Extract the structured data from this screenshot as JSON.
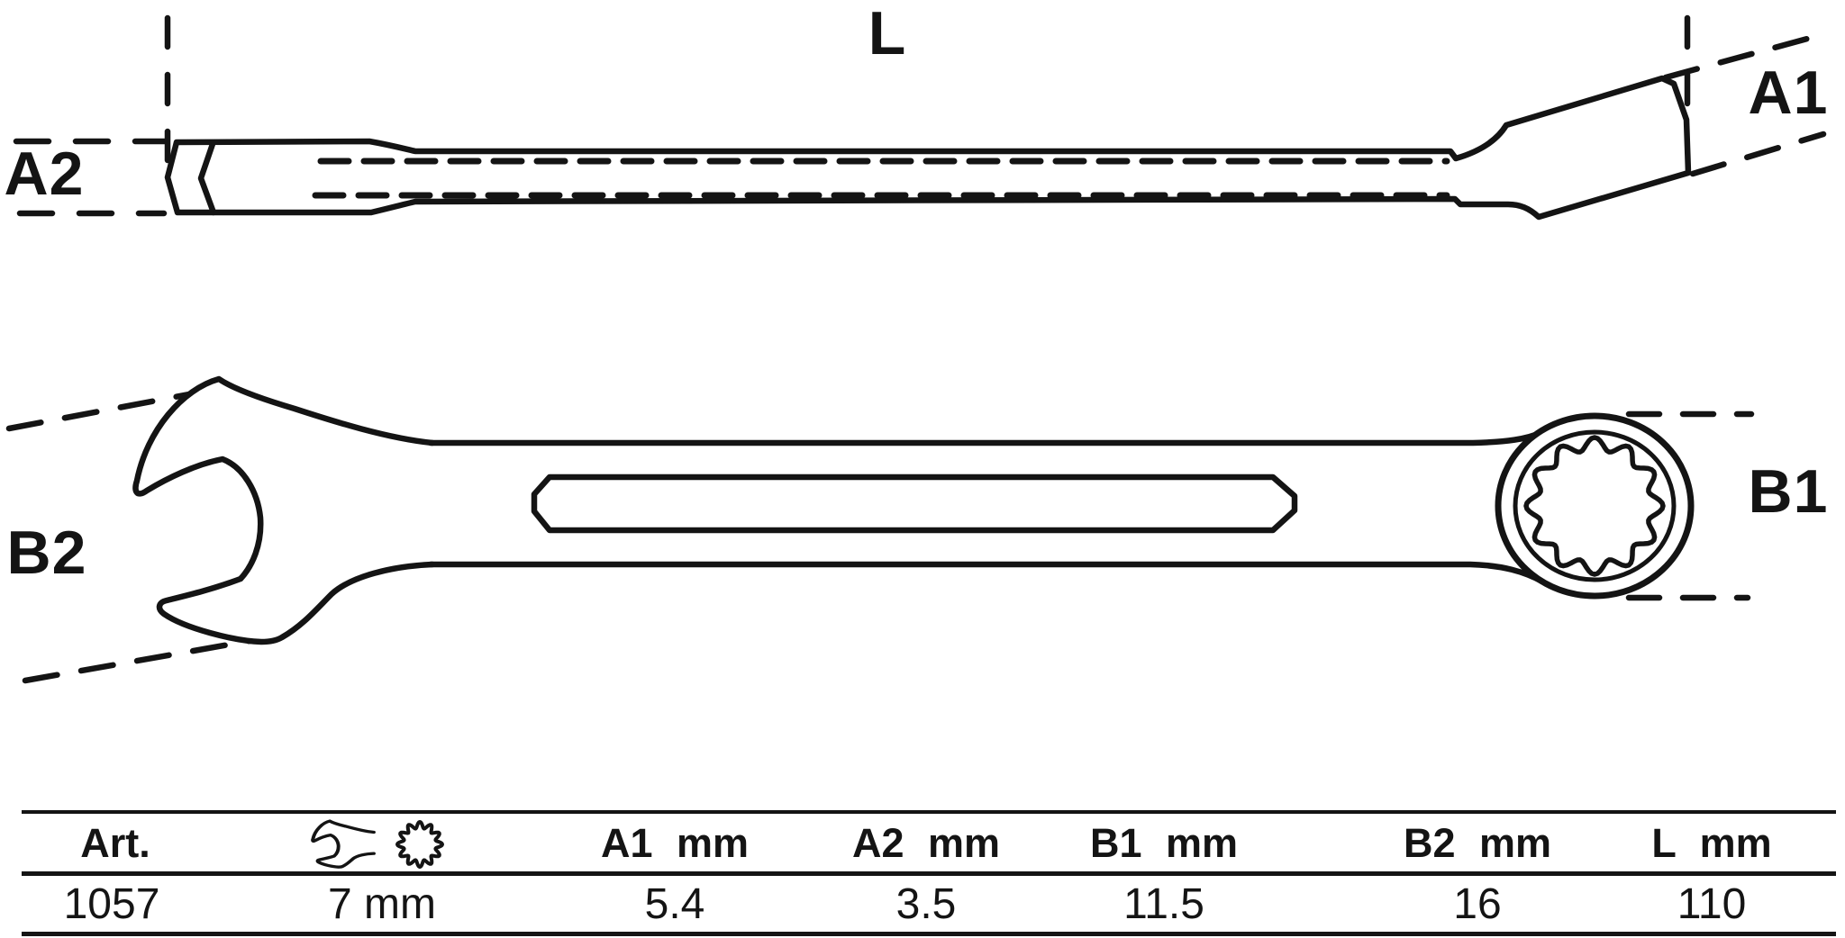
{
  "colors": {
    "line": "#141414",
    "background": "#ffffff"
  },
  "drawing": {
    "labels": {
      "length": "L",
      "ring_thickness": "A1",
      "open_thickness": "A2",
      "ring_width": "B1",
      "open_width": "B2"
    }
  },
  "table": {
    "columns": [
      {
        "id": "art",
        "header": "Art.",
        "value": "1057"
      },
      {
        "id": "size",
        "header_icons": [
          "open-end-wrench-icon",
          "ring-12-point-icon"
        ],
        "value": "7 mm"
      },
      {
        "id": "a1",
        "header": "A1 mm",
        "value": "5.4"
      },
      {
        "id": "a2",
        "header": "A2 mm",
        "value": "3.5"
      },
      {
        "id": "b1",
        "header": "B1 mm",
        "value": "11.5"
      },
      {
        "id": "b2",
        "header": "B2 mm",
        "value": "16"
      },
      {
        "id": "l",
        "header": "L mm",
        "value": "110"
      }
    ]
  }
}
